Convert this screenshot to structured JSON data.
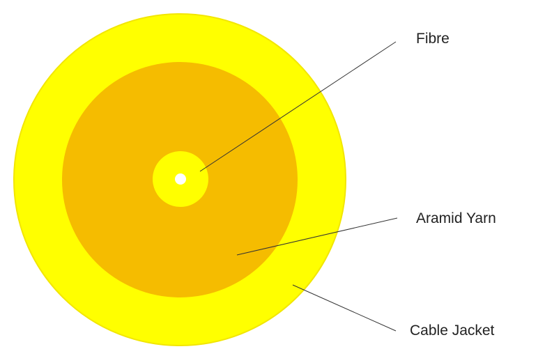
{
  "labels": {
    "fibre": "Fibre",
    "aramid_yarn": "Aramid Yarn",
    "cable_jacket": "Cable Jacket"
  },
  "colors": {
    "jacket": "#FFFF00",
    "jacket_edge": "#F2E600",
    "yarn": "#F5BC00",
    "fibre_ring": "#FFFF00",
    "fibre_core": "#FFFFFF",
    "leader": "#333333",
    "text": "#222222"
  }
}
